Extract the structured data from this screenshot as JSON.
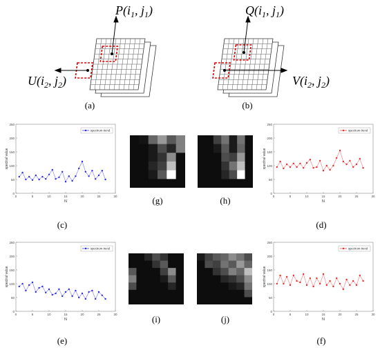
{
  "panels": {
    "a": {
      "caption": "(a)",
      "label_top": {
        "letter": "P",
        "i": "1",
        "j": "1"
      },
      "label_left": {
        "letter": "U",
        "i": "2",
        "j": "2"
      }
    },
    "b": {
      "caption": "(b)",
      "label_top": {
        "letter": "Q",
        "i": "1",
        "j": "1"
      },
      "label_right": {
        "letter": "V",
        "i": "2",
        "j": "2"
      }
    },
    "c": {
      "caption": "(c)"
    },
    "d": {
      "caption": "(d)"
    },
    "e": {
      "caption": "(e)"
    },
    "f": {
      "caption": "(f)"
    },
    "g": {
      "caption": "(g)"
    },
    "h": {
      "caption": "(h)"
    },
    "i": {
      "caption": "(i)"
    },
    "j": {
      "caption": "(j)"
    }
  },
  "colors": {
    "blue": "#2a2ae6",
    "red": "#e62a2a",
    "dashed": "#e00000"
  },
  "chart_data": [
    {
      "id": "c",
      "type": "line",
      "color": "#2a2ae6",
      "xlabel": "N",
      "ylabel": "spectral value",
      "legend": "spectrum-trend",
      "legend_position": "top-right",
      "xlim": [
        0,
        30
      ],
      "ylim": [
        0,
        250
      ],
      "xticks": [
        0,
        5,
        10,
        15,
        20,
        25,
        30
      ],
      "yticks": [
        0,
        50,
        100,
        150,
        200,
        250
      ],
      "x": [
        1,
        2,
        3,
        4,
        5,
        6,
        7,
        8,
        9,
        10,
        11,
        12,
        13,
        14,
        15,
        16,
        17,
        18,
        19,
        20,
        21,
        22,
        23,
        24,
        25,
        26,
        27
      ],
      "values": [
        60,
        75,
        50,
        60,
        48,
        65,
        50,
        60,
        52,
        68,
        85,
        52,
        58,
        78,
        42,
        62,
        45,
        62,
        90,
        115,
        78,
        62,
        82,
        52,
        65,
        82,
        50
      ]
    },
    {
      "id": "d",
      "type": "line",
      "color": "#e62a2a",
      "xlabel": "N",
      "ylabel": "spectral value",
      "legend": "spectrum-trend",
      "legend_position": "top-right",
      "xlim": [
        0,
        30
      ],
      "ylim": [
        0,
        250
      ],
      "xticks": [
        0,
        5,
        10,
        15,
        20,
        25,
        30
      ],
      "yticks": [
        0,
        50,
        100,
        150,
        200,
        250
      ],
      "x": [
        1,
        2,
        3,
        4,
        5,
        6,
        7,
        8,
        9,
        10,
        11,
        12,
        13,
        14,
        15,
        16,
        17,
        18,
        19,
        20,
        21,
        22,
        23,
        24,
        25,
        26,
        27
      ],
      "values": [
        95,
        115,
        90,
        105,
        95,
        108,
        95,
        108,
        92,
        110,
        122,
        92,
        95,
        118,
        82,
        100,
        85,
        100,
        128,
        155,
        115,
        105,
        118,
        95,
        105,
        125,
        92
      ]
    },
    {
      "id": "e",
      "type": "line",
      "color": "#2a2ae6",
      "xlabel": "N",
      "ylabel": "spectral value",
      "legend": "spectrum-trend",
      "legend_position": "top-right",
      "xlim": [
        0,
        30
      ],
      "ylim": [
        0,
        250
      ],
      "xticks": [
        0,
        5,
        10,
        15,
        20,
        25,
        30
      ],
      "yticks": [
        0,
        50,
        100,
        150,
        200,
        250
      ],
      "x": [
        1,
        2,
        3,
        4,
        5,
        6,
        7,
        8,
        9,
        10,
        11,
        12,
        13,
        14,
        15,
        16,
        17,
        18,
        19,
        20,
        21,
        22,
        23,
        24,
        25,
        26,
        27
      ],
      "values": [
        90,
        100,
        75,
        95,
        105,
        70,
        85,
        90,
        68,
        80,
        60,
        65,
        80,
        55,
        70,
        80,
        55,
        75,
        50,
        65,
        45,
        70,
        75,
        45,
        70,
        58,
        45
      ]
    },
    {
      "id": "f",
      "type": "line",
      "color": "#e62a2a",
      "xlabel": "N",
      "ylabel": "spectral value",
      "legend": "spectrum-trend",
      "legend_position": "top-right",
      "xlim": [
        0,
        30
      ],
      "ylim": [
        0,
        250
      ],
      "xticks": [
        0,
        5,
        10,
        15,
        20,
        25,
        30
      ],
      "yticks": [
        0,
        50,
        100,
        150,
        200,
        250
      ],
      "x": [
        1,
        2,
        3,
        4,
        5,
        6,
        7,
        8,
        9,
        10,
        11,
        12,
        13,
        14,
        15,
        16,
        17,
        18,
        19,
        20,
        21,
        22,
        23,
        24,
        25,
        26,
        27
      ],
      "values": [
        100,
        130,
        100,
        125,
        95,
        130,
        110,
        105,
        135,
        95,
        120,
        90,
        120,
        100,
        135,
        95,
        110,
        90,
        120,
        100,
        80,
        115,
        95,
        110,
        95,
        130,
        110
      ]
    }
  ],
  "heatmaps": {
    "g": {
      "cols": 6,
      "rows": 6,
      "cells": [
        [
          0.05,
          0.08,
          0.4,
          0.6,
          0.35,
          0.5
        ],
        [
          0.05,
          0.05,
          0.1,
          0.3,
          0.15,
          0.5
        ],
        [
          0.05,
          0.05,
          0.1,
          0.2,
          0.55,
          0.05
        ],
        [
          0.05,
          0.05,
          0.15,
          0.25,
          0.75,
          0.05
        ],
        [
          0.05,
          0.05,
          0.1,
          0.35,
          1.0,
          0.05
        ],
        [
          0.05,
          0.05,
          0.05,
          0.05,
          0.05,
          0.05
        ]
      ]
    },
    "h": {
      "cols": 7,
      "rows": 6,
      "cells": [
        [
          0.05,
          0.05,
          0.25,
          0.45,
          0.1,
          0.45,
          0.05
        ],
        [
          0.05,
          0.05,
          0.1,
          0.35,
          0.1,
          0.4,
          0.05
        ],
        [
          0.05,
          0.05,
          0.05,
          0.3,
          0.25,
          0.6,
          0.05
        ],
        [
          0.05,
          0.05,
          0.05,
          0.2,
          0.45,
          0.75,
          0.05
        ],
        [
          0.05,
          0.05,
          0.05,
          0.15,
          0.3,
          1.0,
          0.05
        ],
        [
          0.05,
          0.05,
          0.05,
          0.05,
          0.05,
          0.05,
          0.05
        ]
      ]
    },
    "i": {
      "cols": 7,
      "rows": 7,
      "cells": [
        [
          0.05,
          0.05,
          0.15,
          0.3,
          0.2,
          0.05,
          0.05
        ],
        [
          0.05,
          0.05,
          0.05,
          0.2,
          0.35,
          0.05,
          0.05
        ],
        [
          0.35,
          0.05,
          0.05,
          0.05,
          0.25,
          0.55,
          0.05
        ],
        [
          0.5,
          0.05,
          0.05,
          0.05,
          0.1,
          0.35,
          0.05
        ],
        [
          0.3,
          0.05,
          0.05,
          0.05,
          0.05,
          0.15,
          0.05
        ],
        [
          0.05,
          0.05,
          0.05,
          0.05,
          0.05,
          0.05,
          0.05
        ],
        [
          0.05,
          0.05,
          0.05,
          0.05,
          0.05,
          0.05,
          0.05
        ]
      ]
    },
    "j": {
      "cols": 7,
      "rows": 7,
      "cells": [
        [
          0.1,
          0.25,
          0.35,
          0.4,
          0.55,
          0.45,
          0.3
        ],
        [
          0.05,
          0.3,
          0.25,
          0.45,
          0.35,
          0.6,
          0.4
        ],
        [
          0.05,
          0.05,
          0.2,
          0.3,
          0.5,
          0.4,
          0.75
        ],
        [
          0.05,
          0.05,
          0.05,
          0.15,
          0.2,
          0.3,
          0.55
        ],
        [
          0.05,
          0.05,
          0.05,
          0.05,
          0.1,
          0.15,
          0.45
        ],
        [
          0.05,
          0.05,
          0.05,
          0.05,
          0.05,
          0.05,
          0.3
        ],
        [
          0.05,
          0.05,
          0.05,
          0.05,
          0.05,
          0.05,
          0.05
        ]
      ]
    }
  }
}
